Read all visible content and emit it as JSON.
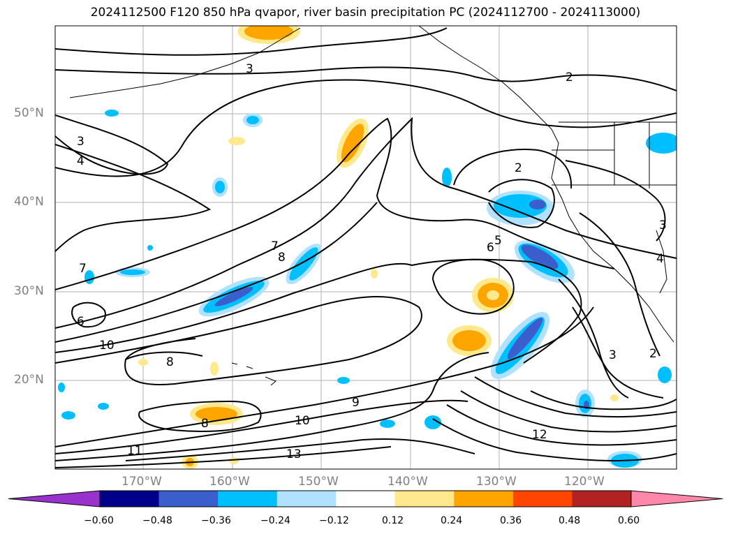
{
  "title": "2024112500 F120 850 hPa qvapor, river basin precipitation PC (2024112700 - 2024113000)",
  "axes": {
    "lat_labels": [
      "50°N",
      "40°N",
      "30°N",
      "20°N"
    ],
    "lon_labels": [
      "170°W",
      "160°W",
      "150°W",
      "140°W",
      "130°W",
      "120°W"
    ]
  },
  "contour_labels": [
    "3",
    "2",
    "3",
    "4",
    "2",
    "7",
    "8",
    "5",
    "6",
    "7",
    "6",
    "10",
    "8",
    "9",
    "10",
    "11",
    "13",
    "12",
    "3",
    "2",
    "3",
    "4",
    "8"
  ],
  "colorbar": {
    "ticks": [
      "−0.60",
      "−0.48",
      "−0.36",
      "−0.24",
      "−0.12",
      "0.12",
      "0.24",
      "0.36",
      "0.48",
      "0.60"
    ],
    "colors": [
      "#9932cc",
      "#00008b",
      "#3a5fcd",
      "#00bfff",
      "#b0e2ff",
      "#ffffff",
      "#ffe98c",
      "#ffa500",
      "#ff4500",
      "#b22222",
      "#ff88aa"
    ]
  }
}
